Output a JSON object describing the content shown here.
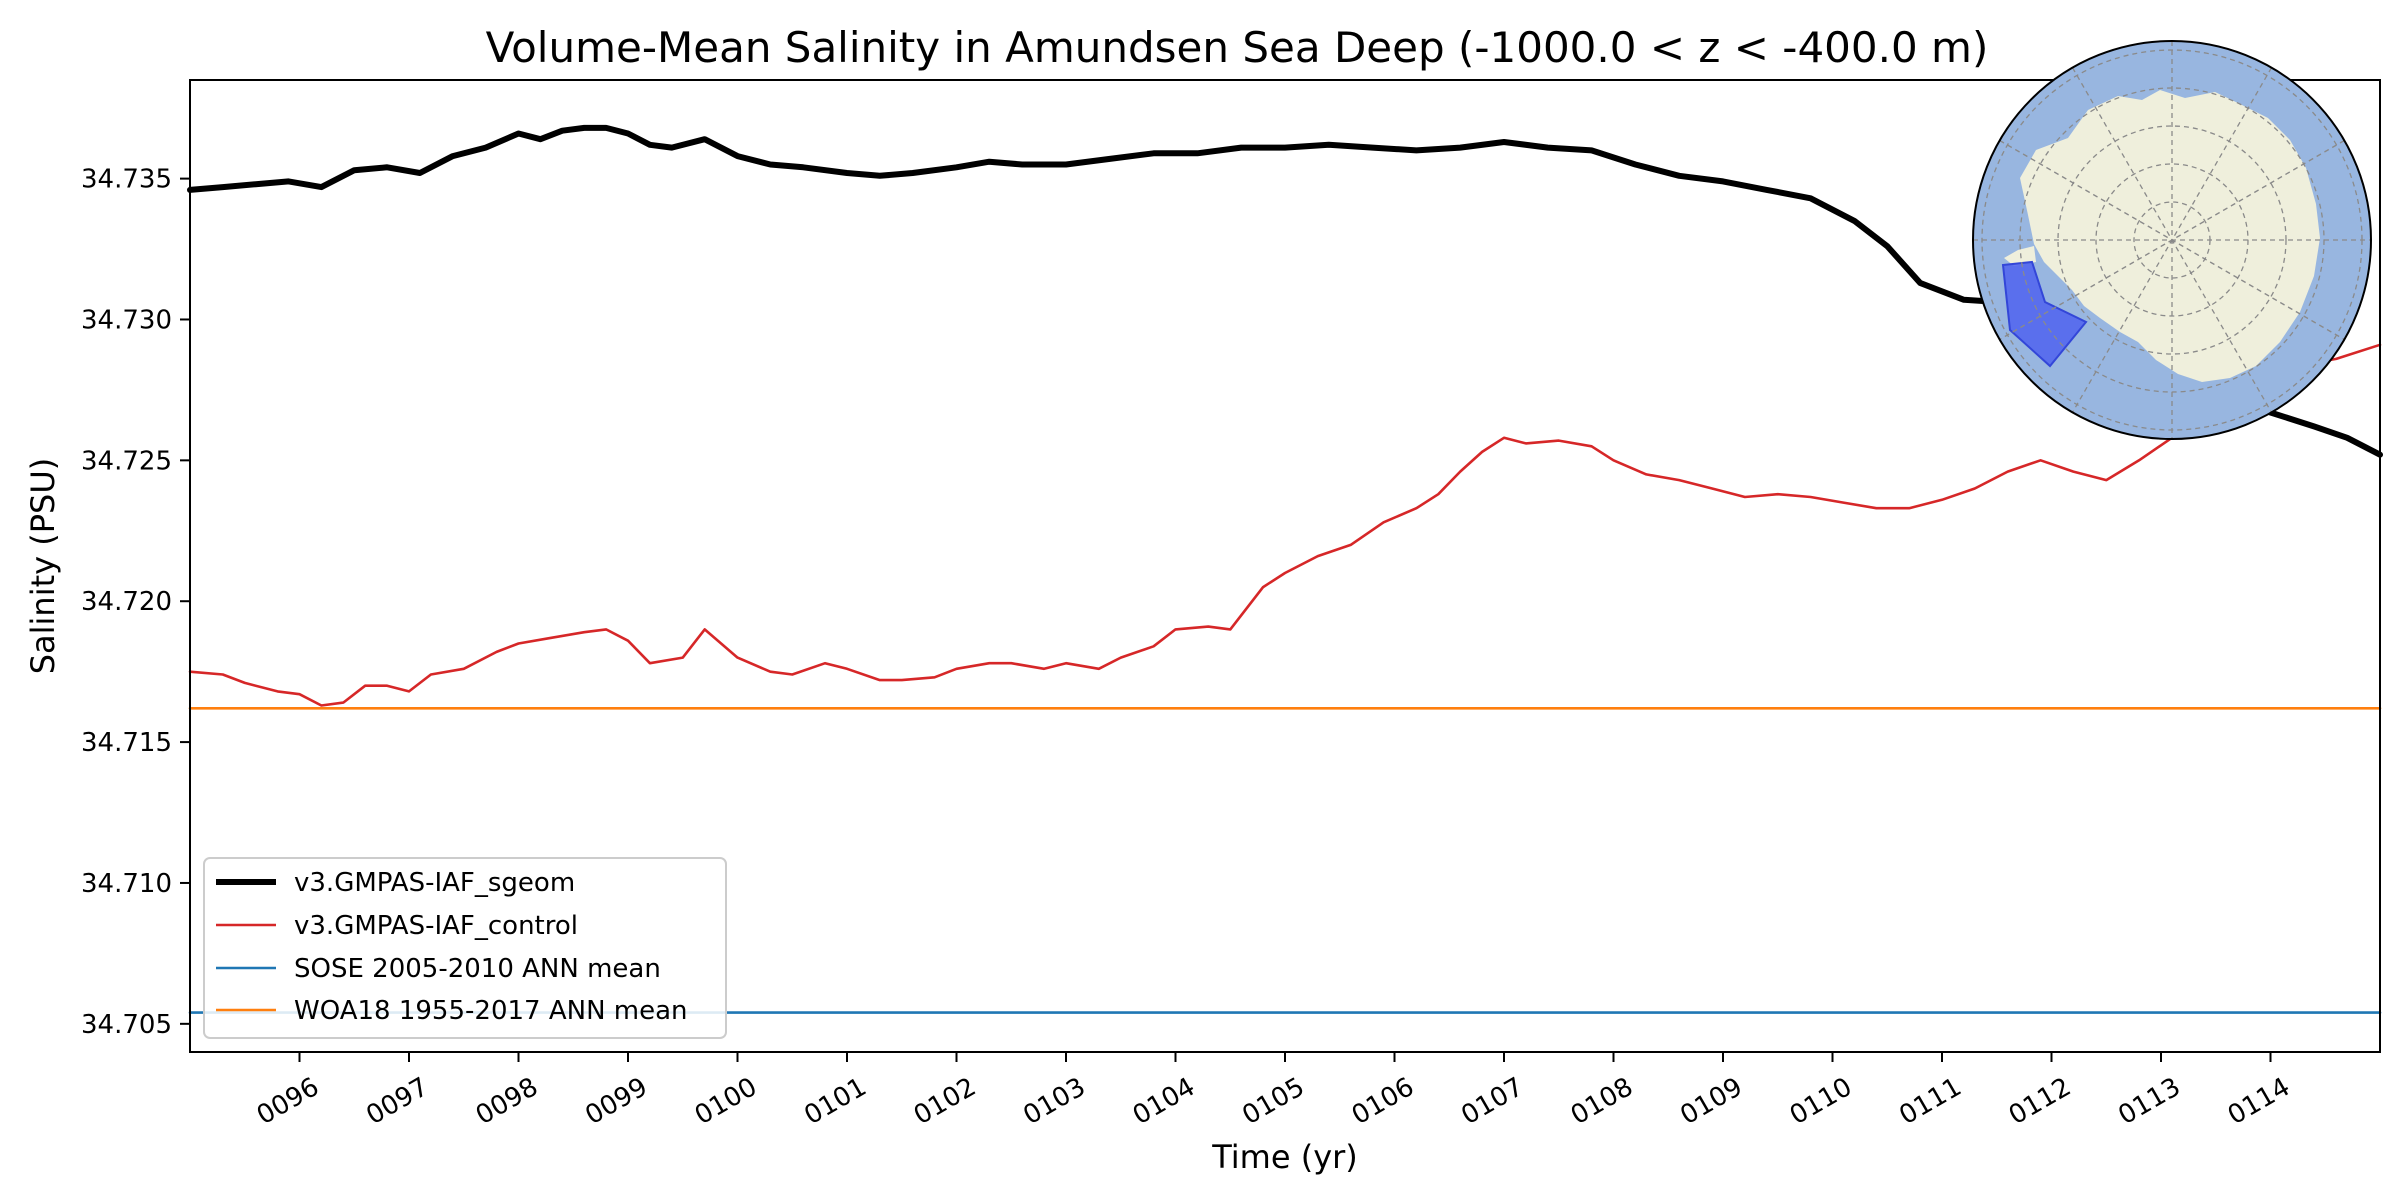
{
  "chart_data": {
    "type": "line",
    "title": "Volume-Mean Salinity in Amundsen Sea Deep (-1000.0 < z < -400.0 m)",
    "xlabel": "Time (yr)",
    "ylabel": "Salinity (PSU)",
    "xlim": [
      95.0,
      115.0
    ],
    "ylim": [
      34.704,
      34.7385
    ],
    "x_ticks": [
      96,
      97,
      98,
      99,
      100,
      101,
      102,
      103,
      104,
      105,
      106,
      107,
      108,
      109,
      110,
      111,
      112,
      113,
      114
    ],
    "x_tick_labels": [
      "0096",
      "0097",
      "0098",
      "0099",
      "0100",
      "0101",
      "0102",
      "0103",
      "0104",
      "0105",
      "0106",
      "0107",
      "0108",
      "0109",
      "0110",
      "0111",
      "0112",
      "0113",
      "0114"
    ],
    "y_ticks": [
      34.705,
      34.71,
      34.715,
      34.72,
      34.725,
      34.73,
      34.735
    ],
    "y_tick_labels": [
      "34.705",
      "34.710",
      "34.715",
      "34.720",
      "34.725",
      "34.730",
      "34.735"
    ],
    "grid": false,
    "legend_position": "lower-left",
    "series": [
      {
        "name": "v3.GMPAS-IAF_sgeom",
        "color": "#000000",
        "style": "thick",
        "x": [
          95.0,
          95.3,
          95.6,
          95.9,
          96.2,
          96.5,
          96.8,
          97.1,
          97.4,
          97.7,
          98.0,
          98.2,
          98.4,
          98.6,
          98.8,
          99.0,
          99.2,
          99.4,
          99.7,
          100.0,
          100.3,
          100.6,
          101.0,
          101.3,
          101.6,
          102.0,
          102.3,
          102.6,
          103.0,
          103.4,
          103.8,
          104.2,
          104.6,
          105.0,
          105.4,
          105.8,
          106.2,
          106.6,
          107.0,
          107.4,
          107.8,
          108.2,
          108.6,
          109.0,
          109.4,
          109.8,
          110.2,
          110.5,
          110.8,
          111.2,
          111.6,
          112.0,
          112.4,
          112.8,
          113.2,
          113.6,
          114.0,
          114.4,
          114.7,
          115.0
        ],
        "values": [
          34.7346,
          34.7347,
          34.7348,
          34.7349,
          34.7347,
          34.7353,
          34.7354,
          34.7352,
          34.7358,
          34.7361,
          34.7366,
          34.7364,
          34.7367,
          34.7368,
          34.7368,
          34.7366,
          34.7362,
          34.7361,
          34.7364,
          34.7358,
          34.7355,
          34.7354,
          34.7352,
          34.7351,
          34.7352,
          34.7354,
          34.7356,
          34.7355,
          34.7355,
          34.7357,
          34.7359,
          34.7359,
          34.7361,
          34.7361,
          34.7362,
          34.7361,
          34.736,
          34.7361,
          34.7363,
          34.7361,
          34.736,
          34.7355,
          34.7351,
          34.7349,
          34.7346,
          34.7343,
          34.7335,
          34.7326,
          34.7313,
          34.7307,
          34.7306,
          34.7303,
          34.7298,
          34.729,
          34.728,
          34.7272,
          34.7267,
          34.7262,
          34.7258,
          34.7252
        ]
      },
      {
        "name": "v3.GMPAS-IAF_control",
        "color": "#d62728",
        "style": "thin",
        "x": [
          95.0,
          95.3,
          95.5,
          95.8,
          96.0,
          96.2,
          96.4,
          96.6,
          96.8,
          97.0,
          97.2,
          97.5,
          97.8,
          98.0,
          98.3,
          98.6,
          98.8,
          99.0,
          99.2,
          99.5,
          99.7,
          100.0,
          100.3,
          100.5,
          100.8,
          101.0,
          101.3,
          101.5,
          101.8,
          102.0,
          102.3,
          102.5,
          102.8,
          103.0,
          103.3,
          103.5,
          103.8,
          104.0,
          104.3,
          104.5,
          104.8,
          105.0,
          105.3,
          105.6,
          105.9,
          106.2,
          106.4,
          106.6,
          106.8,
          107.0,
          107.2,
          107.5,
          107.8,
          108.0,
          108.3,
          108.6,
          108.9,
          109.2,
          109.5,
          109.8,
          110.1,
          110.4,
          110.7,
          111.0,
          111.3,
          111.6,
          111.9,
          112.2,
          112.5,
          112.8,
          113.1,
          113.4,
          113.7,
          114.0,
          114.3,
          114.6,
          115.0
        ],
        "values": [
          34.7175,
          34.7174,
          34.7171,
          34.7168,
          34.7167,
          34.7163,
          34.7164,
          34.717,
          34.717,
          34.7168,
          34.7174,
          34.7176,
          34.7182,
          34.7185,
          34.7187,
          34.7189,
          34.719,
          34.7186,
          34.7178,
          34.718,
          34.719,
          34.718,
          34.7175,
          34.7174,
          34.7178,
          34.7176,
          34.7172,
          34.7172,
          34.7173,
          34.7176,
          34.7178,
          34.7178,
          34.7176,
          34.7178,
          34.7176,
          34.718,
          34.7184,
          34.719,
          34.7191,
          34.719,
          34.7205,
          34.721,
          34.7216,
          34.722,
          34.7228,
          34.7233,
          34.7238,
          34.7246,
          34.7253,
          34.7258,
          34.7256,
          34.7257,
          34.7255,
          34.725,
          34.7245,
          34.7243,
          34.724,
          34.7237,
          34.7238,
          34.7237,
          34.7235,
          34.7233,
          34.7233,
          34.7236,
          34.724,
          34.7246,
          34.725,
          34.7246,
          34.7243,
          34.725,
          34.7258,
          34.7268,
          34.7275,
          34.7282,
          34.7284,
          34.7286,
          34.7291
        ]
      },
      {
        "name": "SOSE 2005-2010 ANN mean",
        "color": "#1f77b4",
        "style": "thin",
        "x": [
          95.0,
          115.0
        ],
        "values": [
          34.7054,
          34.7054
        ]
      },
      {
        "name": "WOA18 1955-2017 ANN mean",
        "color": "#ff7f0e",
        "style": "thin",
        "x": [
          95.0,
          115.0
        ],
        "values": [
          34.7162,
          34.7162
        ]
      }
    ]
  },
  "inset_map": {
    "colors": {
      "ocean": "#98b6e0",
      "land": "#efefdc",
      "region": "#4f63ef",
      "grid": "#8a8a8a"
    }
  }
}
